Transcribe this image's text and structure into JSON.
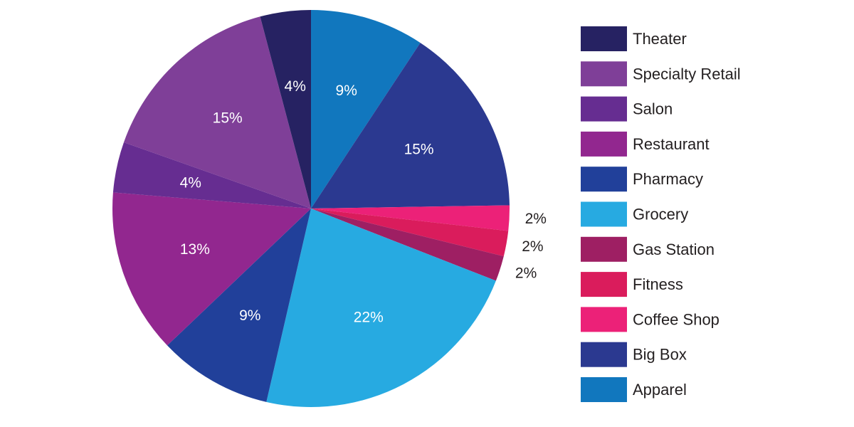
{
  "chart_data": {
    "type": "pie",
    "categories": [
      "Apparel",
      "Big Box",
      "Coffee Shop",
      "Fitness",
      "Gas Station",
      "Grocery",
      "Pharmacy",
      "Restaurant",
      "Salon",
      "Specialty Retail",
      "Theater"
    ],
    "values": [
      9,
      15,
      2,
      2,
      2,
      22,
      9,
      13,
      4,
      15,
      4
    ],
    "labels": [
      "9%",
      "15%",
      "2%",
      "2%",
      "2%",
      "22%",
      "9%",
      "13%",
      "4%",
      "15%",
      "4%"
    ],
    "colors": [
      "#1177be",
      "#2b3990",
      "#ec2178",
      "#da1c5c",
      "#9e1f63",
      "#27aae1",
      "#21409a",
      "#92278f",
      "#662d91",
      "#7f3f98",
      "#262262"
    ],
    "label_colors": [
      "#ffffff",
      "#ffffff",
      "#231f20",
      "#231f20",
      "#231f20",
      "#ffffff",
      "#ffffff",
      "#ffffff",
      "#ffffff",
      "#ffffff",
      "#ffffff"
    ],
    "label_placement": [
      "inside",
      "inside",
      "outside",
      "outside",
      "outside",
      "inside",
      "inside",
      "inside",
      "inside",
      "inside",
      "inside"
    ],
    "legend": {
      "placement": "right",
      "order": [
        "Theater",
        "Specialty Retail",
        "Salon",
        "Restaurant",
        "Pharmacy",
        "Grocery",
        "Gas Station",
        "Fitness",
        "Coffee Shop",
        "Big Box",
        "Apparel"
      ]
    },
    "title": "",
    "start": "12 o'clock",
    "direction": "clockwise"
  }
}
